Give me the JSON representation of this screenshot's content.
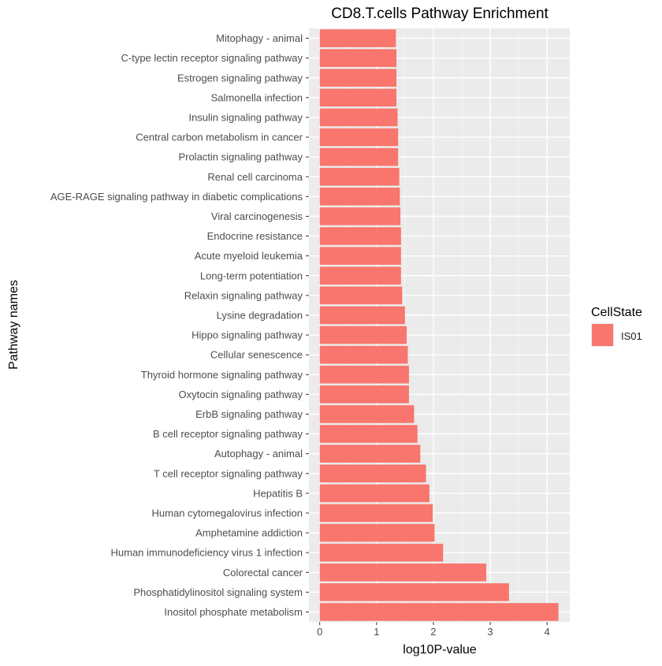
{
  "chart_data": {
    "type": "bar",
    "orientation": "horizontal",
    "title": "CD8.T.cells Pathway Enrichment",
    "xlabel": "log10P-value",
    "ylabel": "Pathway names",
    "xlim": [
      -0.19,
      4.4
    ],
    "x_ticks": [
      0,
      1,
      2,
      3,
      4
    ],
    "grid": true,
    "legend": {
      "title": "CellState",
      "position": "right",
      "entries": [
        {
          "name": "IS01",
          "color": "#F8766D"
        }
      ]
    },
    "categories": [
      "Inositol phosphate metabolism",
      "Phosphatidylinositol signaling system",
      "Colorectal cancer",
      "Human immunodeficiency virus 1 infection",
      "Amphetamine addiction",
      "Human cytomegalovirus infection",
      "Hepatitis B",
      "T cell receptor signaling pathway",
      "Autophagy - animal",
      "B cell receptor signaling pathway",
      "ErbB signaling pathway",
      "Oxytocin signaling pathway",
      "Thyroid hormone signaling pathway",
      "Cellular senescence",
      "Hippo signaling pathway",
      "Lysine degradation",
      "Relaxin signaling pathway",
      "Long-term potentiation",
      "Acute myeloid leukemia",
      "Endocrine resistance",
      "Viral carcinogenesis",
      "AGE-RAGE signaling pathway in diabetic complications",
      "Renal cell carcinoma",
      "Prolactin signaling pathway",
      "Central carbon metabolism in cancer",
      "Insulin signaling pathway",
      "Salmonella infection",
      "Estrogen signaling pathway",
      "C-type lectin receptor signaling pathway",
      "Mitophagy - animal"
    ],
    "series": [
      {
        "name": "IS01",
        "color": "#F8766D",
        "values": [
          4.2,
          3.33,
          2.93,
          2.17,
          2.02,
          1.99,
          1.93,
          1.87,
          1.77,
          1.72,
          1.66,
          1.57,
          1.57,
          1.55,
          1.53,
          1.5,
          1.45,
          1.43,
          1.43,
          1.43,
          1.42,
          1.41,
          1.4,
          1.38,
          1.38,
          1.37,
          1.35,
          1.35,
          1.35,
          1.34
        ]
      }
    ]
  }
}
